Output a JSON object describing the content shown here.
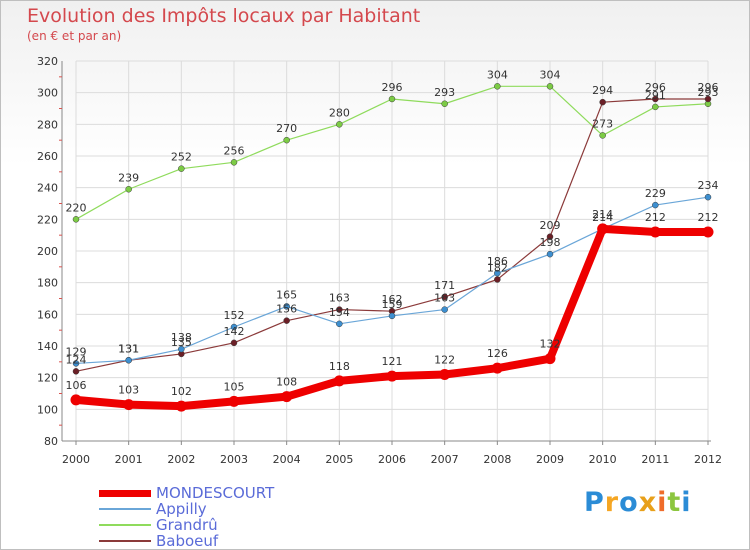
{
  "header": {
    "title": "Evolution des Impôts locaux par Habitant",
    "subtitle": "(en € et par an)"
  },
  "brand": {
    "name": "Proxiti",
    "letters": [
      {
        "char": "P",
        "color": "#2b8cd6"
      },
      {
        "char": "r",
        "color": "#f5a623"
      },
      {
        "char": "o",
        "color": "#2b8cd6"
      },
      {
        "char": "x",
        "color": "#e8a01a"
      },
      {
        "char": "i",
        "color": "#ef6c2b"
      },
      {
        "char": "t",
        "color": "#8cc63f"
      },
      {
        "char": "i",
        "color": "#2b8cd6"
      }
    ]
  },
  "chart_data": {
    "type": "line",
    "title": "Evolution des Impôts locaux par Habitant",
    "subtitle": "(en € et par an)",
    "xlabel": "",
    "ylabel": "",
    "ylim": [
      80,
      320
    ],
    "yticks": [
      80,
      100,
      120,
      140,
      160,
      180,
      200,
      220,
      240,
      260,
      280,
      300,
      320
    ],
    "grid": true,
    "legend_position": "bottom-left",
    "categories": [
      "2000",
      "2001",
      "2002",
      "2003",
      "2004",
      "2005",
      "2006",
      "2007",
      "2008",
      "2009",
      "2010",
      "2011",
      "2012"
    ],
    "series": [
      {
        "name": "Grandrû",
        "color": "#8fdb5c",
        "dot": "#7ccb45",
        "values": [
          220,
          239,
          252,
          256,
          270,
          280,
          296,
          293,
          304,
          304,
          273,
          291,
          293
        ]
      },
      {
        "name": "Baboeuf",
        "color": "#8b3a3a",
        "dot": "#6b1f26",
        "values": [
          124,
          131,
          135,
          142,
          156,
          163,
          162,
          171,
          182,
          209,
          294,
          296,
          296
        ]
      },
      {
        "name": "Appilly",
        "color": "#6aa6d8",
        "dot": "#3d8fd0",
        "values": [
          129,
          131,
          138,
          152,
          165,
          154,
          159,
          163,
          186,
          198,
          214,
          229,
          234
        ]
      },
      {
        "name": "MONDESCOURT",
        "color": "#ee0000",
        "dot": "#ee0000",
        "values": [
          106,
          103,
          102,
          105,
          108,
          118,
          121,
          122,
          126,
          132,
          214,
          212,
          212
        ]
      }
    ],
    "legend_order": [
      "MONDESCOURT",
      "Appilly",
      "Grandrû",
      "Baboeuf"
    ]
  }
}
